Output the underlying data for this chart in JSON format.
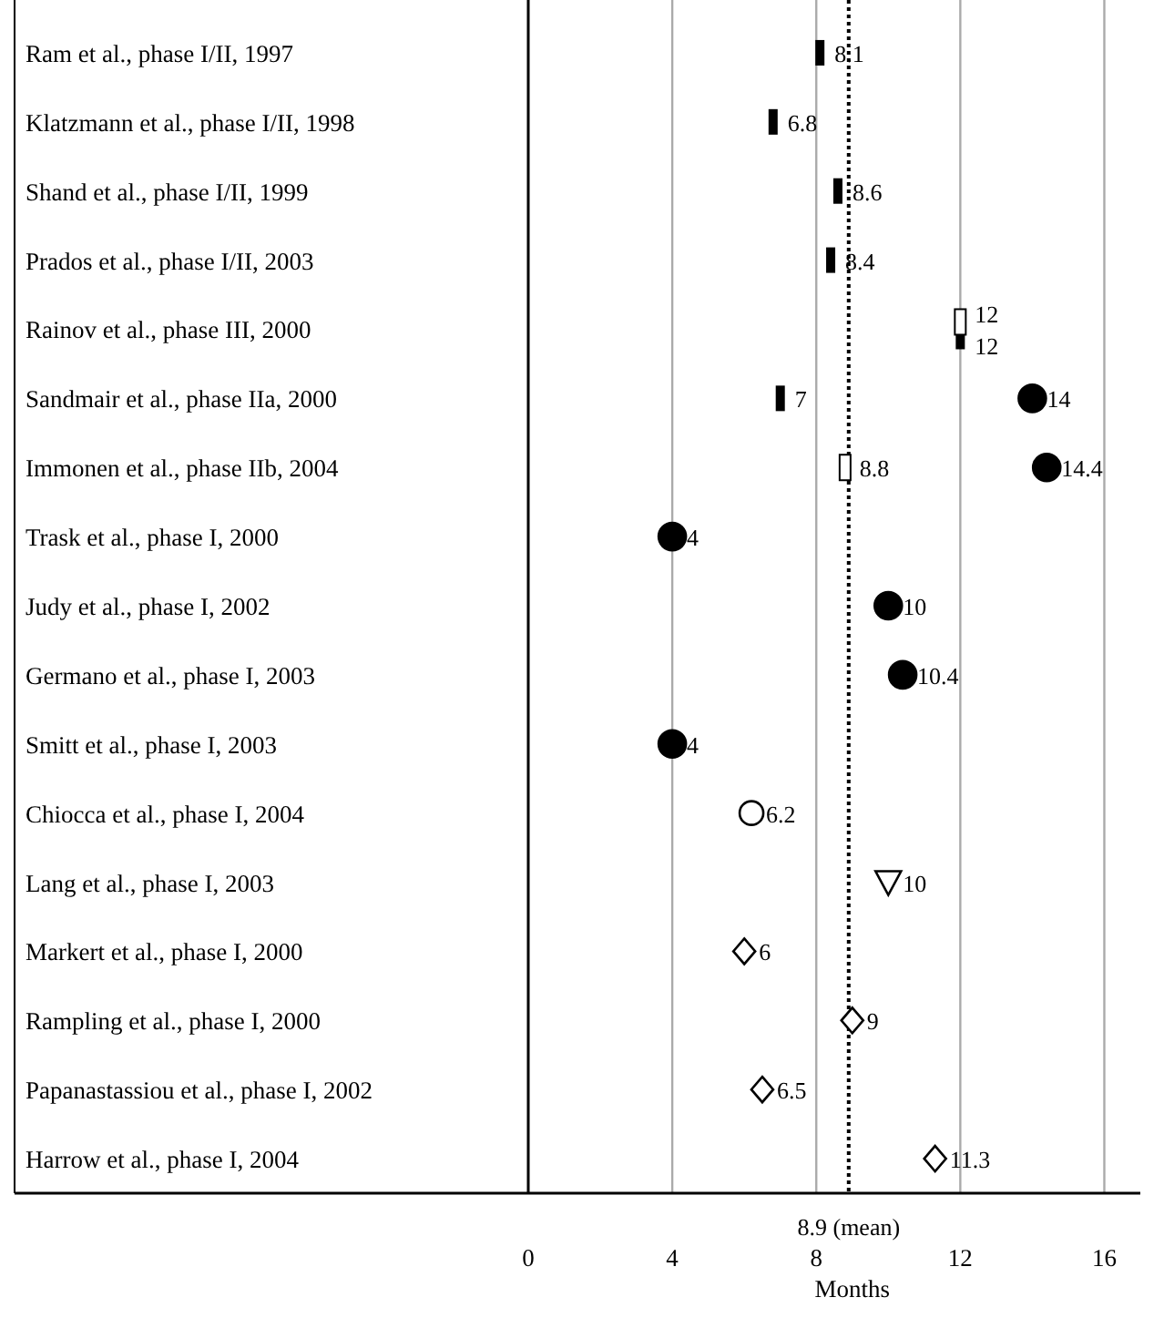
{
  "chart_data": {
    "type": "scatter",
    "orientation": "horizontal",
    "xlabel": "Months",
    "categories": [
      "Ram et al., phase I/II, 1997",
      "Klatzmann et al., phase I/II, 1998",
      "Shand et al., phase I/II, 1999",
      "Prados et al., phase I/II, 2003",
      "Rainov et al., phase III, 2000",
      "Sandmair et al., phase IIa, 2000",
      "Immonen et al., phase IIb, 2004",
      "Trask et al., phase I, 2000",
      "Judy et al., phase I, 2002",
      "Germano et al., phase I, 2003",
      "Smitt et al., phase I, 2003",
      "Chiocca et al., phase I, 2004",
      "Lang et al., phase I, 2003",
      "Markert et al., phase I, 2000",
      "Rampling et al., phase I, 2000",
      "Papanastassiou et al., phase I, 2002",
      "Harrow et al., phase I, 2004"
    ],
    "series": [
      {
        "marker": "square",
        "color": "#000000",
        "values": [
          8.1,
          6.8,
          8.6,
          8.4,
          12,
          7,
          null,
          null,
          null,
          null,
          null,
          null,
          null,
          null,
          null,
          null,
          null
        ]
      },
      {
        "marker": "square",
        "color": "#ffffff",
        "values": [
          null,
          null,
          null,
          null,
          12,
          null,
          8.8,
          null,
          null,
          null,
          null,
          null,
          null,
          null,
          null,
          null,
          null
        ]
      },
      {
        "marker": "circle",
        "color": "#000000",
        "values": [
          null,
          null,
          null,
          null,
          null,
          14,
          14.4,
          4,
          10,
          10.4,
          4,
          null,
          null,
          null,
          null,
          null,
          null
        ]
      },
      {
        "marker": "circle",
        "color": "#ffffff",
        "values": [
          null,
          null,
          null,
          null,
          null,
          null,
          null,
          null,
          null,
          null,
          null,
          6.2,
          null,
          null,
          null,
          null,
          null
        ]
      },
      {
        "marker": "triangle",
        "color": "#ffffff",
        "values": [
          null,
          null,
          null,
          null,
          null,
          null,
          null,
          null,
          null,
          null,
          null,
          null,
          10,
          null,
          null,
          null,
          null
        ]
      },
      {
        "marker": "diamond",
        "color": "#ffffff",
        "values": [
          null,
          null,
          null,
          null,
          null,
          null,
          null,
          null,
          null,
          null,
          null,
          null,
          null,
          6,
          9,
          6.5,
          11.3
        ]
      }
    ],
    "xlim": [
      0,
      17
    ],
    "xticks": [
      0,
      4,
      8,
      12,
      16
    ],
    "grid": "x",
    "data_labels": true,
    "ref_lines": [
      {
        "axis": "x",
        "value": 8.9,
        "label": "8.9 (mean)",
        "line_style": "dotted",
        "color": "#000000"
      }
    ]
  }
}
